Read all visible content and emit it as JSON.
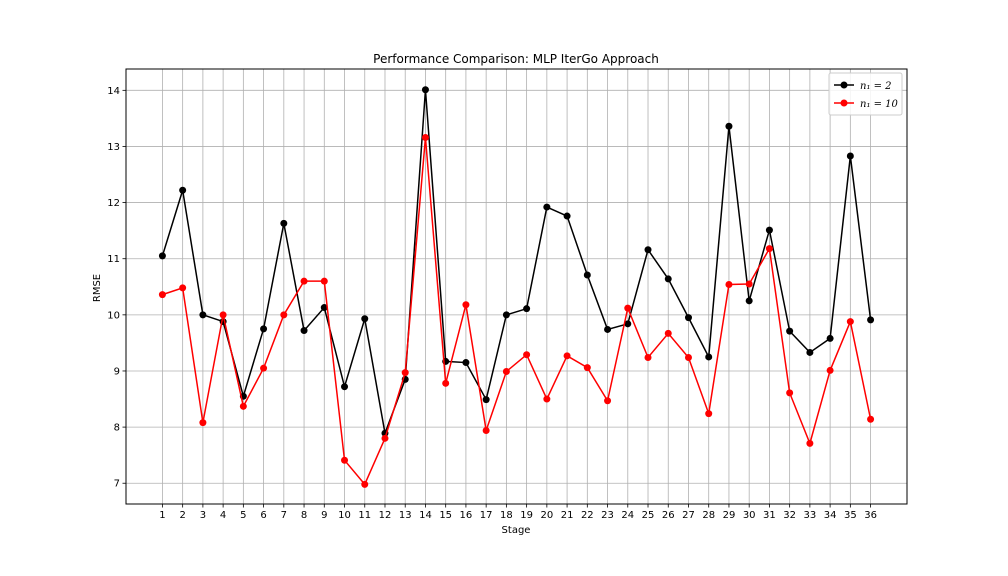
{
  "chart_data": {
    "type": "line",
    "title": "Performance Comparison: MLP IterGo Approach",
    "xlabel": "Stage",
    "ylabel": "RMSE",
    "x": [
      1,
      2,
      3,
      4,
      5,
      6,
      7,
      8,
      9,
      10,
      11,
      12,
      13,
      14,
      15,
      16,
      17,
      18,
      19,
      20,
      21,
      22,
      23,
      24,
      25,
      26,
      27,
      28,
      29,
      30,
      31,
      32,
      33,
      34,
      35,
      36
    ],
    "xlim": [
      -0.8,
      37.8
    ],
    "ylim": [
      6.63,
      14.38
    ],
    "yticks": [
      7,
      8,
      9,
      10,
      11,
      12,
      13,
      14
    ],
    "grid": true,
    "legend_position": "top-right",
    "series": [
      {
        "name": "n₁ = 2",
        "color": "#000000",
        "values": [
          11.05,
          12.22,
          10.0,
          9.88,
          8.55,
          9.75,
          11.63,
          9.72,
          10.13,
          8.72,
          9.93,
          7.89,
          8.85,
          14.01,
          9.17,
          9.15,
          8.49,
          10.0,
          10.11,
          11.92,
          11.76,
          10.71,
          9.74,
          9.84,
          11.16,
          10.64,
          9.95,
          9.25,
          13.36,
          10.25,
          11.51,
          9.71,
          9.33,
          9.58,
          12.83,
          9.91
        ]
      },
      {
        "name": "n₁ = 10",
        "color": "#ff0000",
        "values": [
          10.36,
          10.48,
          8.08,
          10.0,
          8.37,
          9.05,
          10.0,
          10.6,
          10.6,
          7.41,
          6.98,
          7.8,
          8.97,
          13.16,
          8.78,
          10.18,
          7.94,
          8.99,
          9.29,
          8.5,
          9.27,
          9.06,
          8.47,
          10.12,
          9.24,
          9.67,
          9.24,
          8.24,
          10.54,
          10.55,
          11.18,
          8.61,
          7.71,
          9.01,
          9.88,
          8.14
        ]
      }
    ]
  }
}
